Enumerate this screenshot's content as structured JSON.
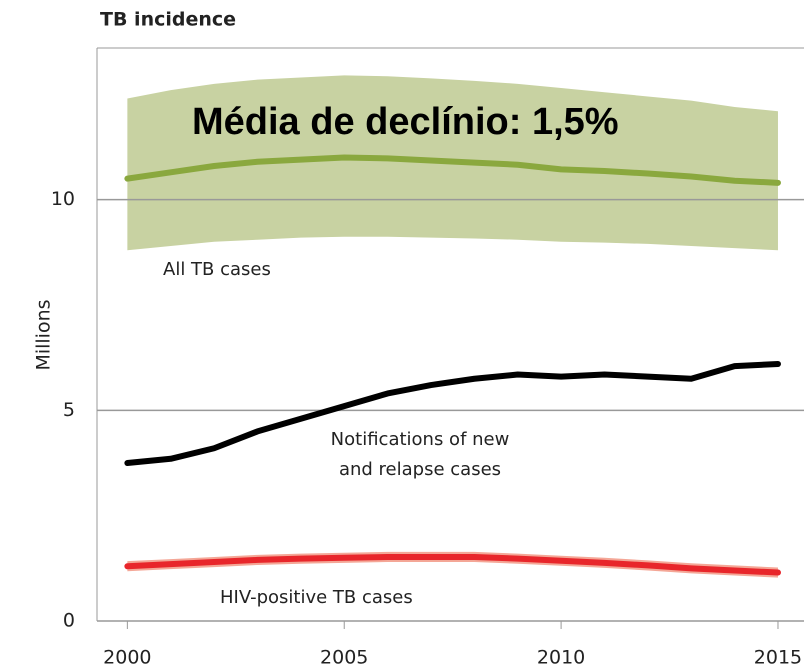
{
  "chart_data": {
    "type": "line",
    "title": "TB incidence",
    "y_label": "Millions",
    "annotation": "Média de declínio: 1,5%",
    "x": [
      2000,
      2001,
      2002,
      2003,
      2004,
      2005,
      2006,
      2007,
      2008,
      2009,
      2010,
      2011,
      2012,
      2013,
      2014,
      2015
    ],
    "xlim": [
      1999.3,
      2015.6
    ],
    "xticks": [
      2000,
      2005,
      2010,
      2015
    ],
    "ylim": [
      0,
      13.6
    ],
    "yticks": [
      0,
      5,
      10
    ],
    "grid": true,
    "series": [
      {
        "name": "All TB cases",
        "color": "#8aa83e",
        "band_color": "#c8d2a2",
        "values": [
          10.5,
          10.65,
          10.8,
          10.9,
          10.95,
          11.0,
          10.98,
          10.93,
          10.88,
          10.83,
          10.72,
          10.68,
          10.62,
          10.55,
          10.45,
          10.4
        ],
        "upper": [
          12.4,
          12.6,
          12.75,
          12.85,
          12.9,
          12.95,
          12.93,
          12.88,
          12.82,
          12.75,
          12.65,
          12.55,
          12.45,
          12.35,
          12.2,
          12.1
        ],
        "lower": [
          8.8,
          8.9,
          9.0,
          9.05,
          9.1,
          9.12,
          9.12,
          9.1,
          9.08,
          9.05,
          9.0,
          8.98,
          8.95,
          8.9,
          8.85,
          8.8
        ]
      },
      {
        "name": "Notifications of new and relapse cases",
        "color": "#000000",
        "values": [
          3.75,
          3.85,
          4.1,
          4.5,
          4.8,
          5.1,
          5.4,
          5.6,
          5.75,
          5.85,
          5.8,
          5.85,
          5.8,
          5.75,
          6.05,
          6.1
        ]
      },
      {
        "name": "HIV-positive TB cases",
        "color": "#e8262b",
        "band_color": "#f4a797",
        "values": [
          1.3,
          1.35,
          1.4,
          1.45,
          1.48,
          1.5,
          1.52,
          1.52,
          1.52,
          1.48,
          1.43,
          1.38,
          1.32,
          1.25,
          1.2,
          1.15
        ],
        "upper": [
          1.42,
          1.47,
          1.52,
          1.57,
          1.6,
          1.62,
          1.64,
          1.64,
          1.64,
          1.6,
          1.55,
          1.5,
          1.44,
          1.37,
          1.32,
          1.27
        ],
        "lower": [
          1.18,
          1.23,
          1.28,
          1.33,
          1.36,
          1.38,
          1.4,
          1.4,
          1.4,
          1.36,
          1.31,
          1.26,
          1.2,
          1.13,
          1.08,
          1.03
        ]
      }
    ]
  }
}
